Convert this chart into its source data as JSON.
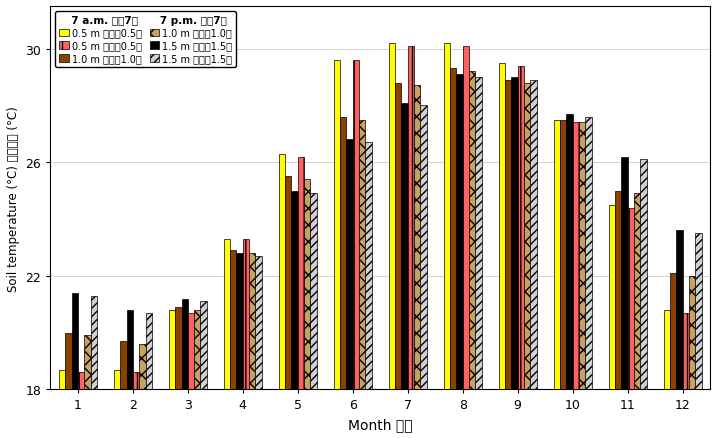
{
  "xlabel": "Month 月份",
  "ylabel": "Soil temperature (°C) 土壤溫度 (°C)",
  "months": [
    1,
    2,
    3,
    4,
    5,
    6,
    7,
    8,
    9,
    10,
    11,
    12
  ],
  "ylim": [
    18,
    31
  ],
  "yticks": [
    18,
    22,
    26,
    30
  ],
  "baseline": 18,
  "am_0p5": [
    18.7,
    18.7,
    20.8,
    23.3,
    26.3,
    29.6,
    30.2,
    30.2,
    29.5,
    27.5,
    24.5,
    20.8
  ],
  "am_1p0": [
    20.0,
    19.7,
    20.9,
    22.9,
    25.5,
    27.6,
    28.8,
    29.3,
    28.9,
    27.5,
    25.0,
    22.1
  ],
  "am_1p5": [
    21.4,
    20.8,
    21.2,
    22.8,
    25.0,
    26.8,
    28.1,
    29.1,
    29.0,
    27.7,
    26.2,
    23.6
  ],
  "pm_0p5": [
    18.6,
    18.6,
    20.7,
    23.3,
    26.2,
    29.6,
    30.1,
    30.1,
    29.4,
    27.4,
    24.4,
    20.7
  ],
  "pm_1p0": [
    19.9,
    19.6,
    20.8,
    22.8,
    25.4,
    27.5,
    28.7,
    29.2,
    28.8,
    27.4,
    24.9,
    22.0
  ],
  "pm_1p5": [
    21.3,
    20.7,
    21.1,
    22.7,
    24.9,
    26.7,
    28.0,
    29.0,
    28.9,
    27.6,
    26.1,
    23.5
  ],
  "color_am_0p5": "#FFFF00",
  "color_am_1p0": "#8B4000",
  "color_am_1p5": "#000000",
  "color_pm_0p5": "#FF6060",
  "color_pm_1p0": "#C8A060",
  "color_pm_1p5": "#D0D0D0",
  "legend_am_header": "7 a.m. 上午7時",
  "legend_pm_header": "7 p.m. 下午7時",
  "legend_am_0p5": "0.5 m 地面下0.5米",
  "legend_am_1p0": "1.0 m 地面下1.0米",
  "legend_am_1p5": "1.5 m 地面下1.5米",
  "legend_pm_0p5": "0.5 m 地面下0.5米",
  "legend_pm_1p0": "1.0 m 地面下1.0米",
  "legend_pm_1p5": "1.5 m 地面下1.5米"
}
